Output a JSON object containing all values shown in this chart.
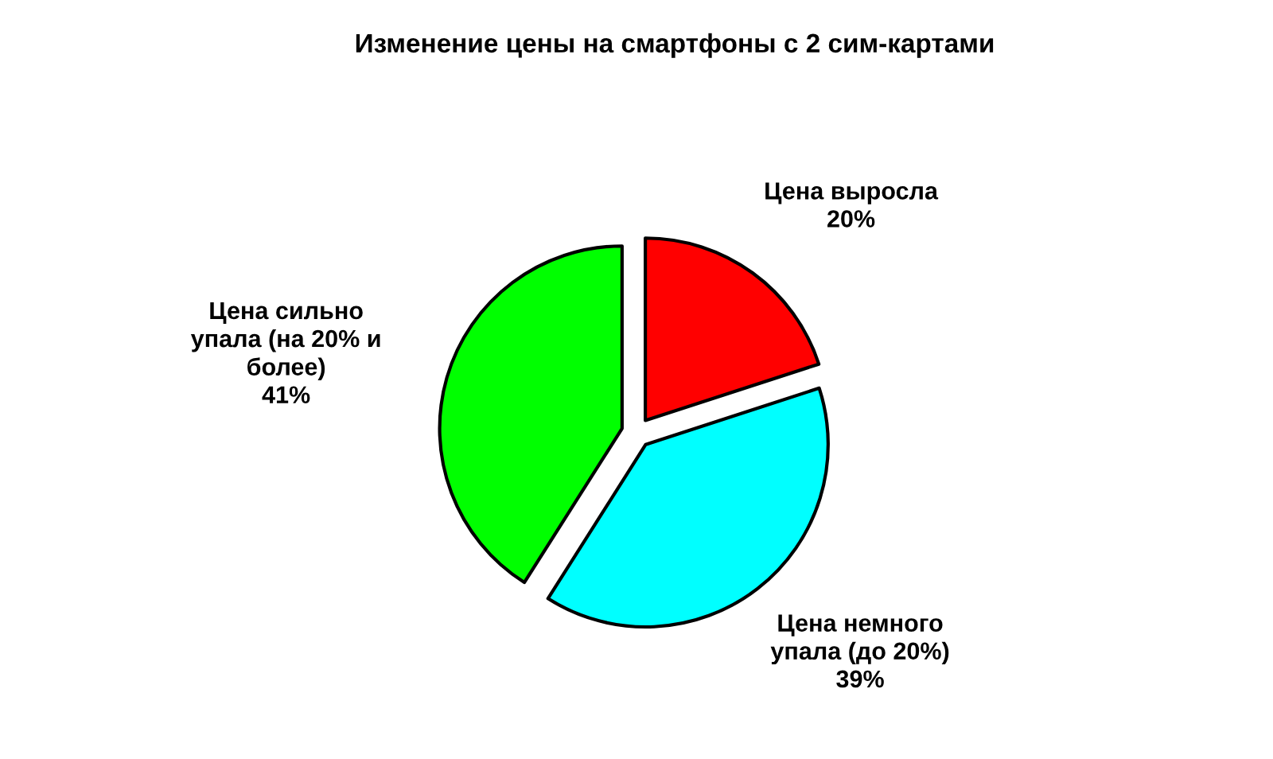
{
  "chart_data": {
    "type": "pie",
    "title": "Изменение цены на смартфоны с 2 сим-картами",
    "categories": [
      "Цена выросла",
      "Цена немного\nупала (до 20%)",
      "Цена сильно\nупала (на 20% и\nболее)"
    ],
    "values": [
      20,
      39,
      41
    ],
    "colors": [
      "#ff0000",
      "#00ffff",
      "#00ff00"
    ],
    "value_labels": [
      "20%",
      "39%",
      "41%"
    ]
  }
}
